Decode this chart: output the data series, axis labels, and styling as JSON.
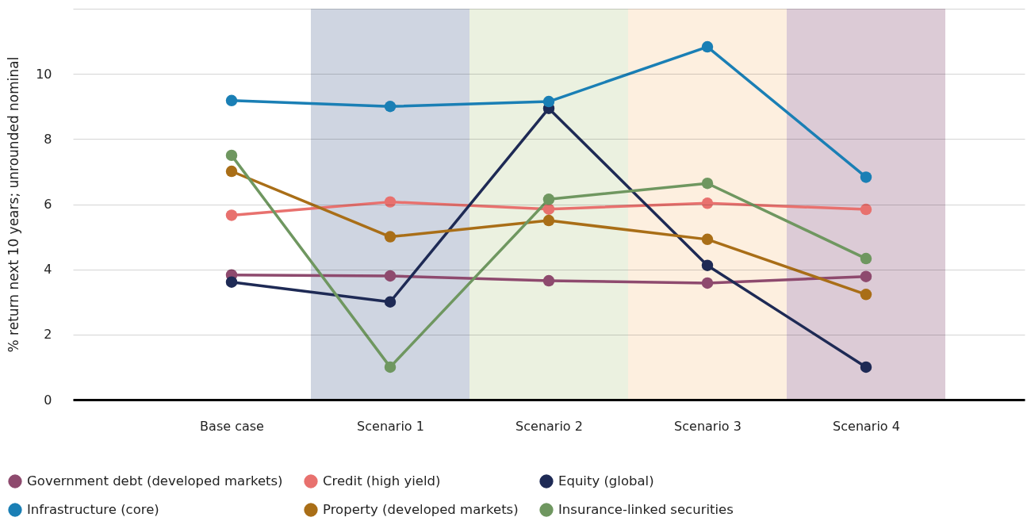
{
  "chart_data": {
    "type": "line",
    "ylabel": "% return next 10 years; unrounded nominal",
    "categories": [
      "Base case",
      "Scenario 1",
      "Scenario 2",
      "Scenario 3",
      "Scenario 4"
    ],
    "series": [
      {
        "name": "Government debt (developed markets)",
        "color": "#8e4a6e",
        "values": [
          3.83,
          3.8,
          3.65,
          3.58,
          3.78
        ]
      },
      {
        "name": "Credit (high yield)",
        "color": "#e8716e",
        "values": [
          5.66,
          6.07,
          5.85,
          6.03,
          5.84
        ]
      },
      {
        "name": "Equity (global)",
        "color": "#1e2a55",
        "values": [
          3.61,
          3.0,
          8.94,
          4.12,
          1.0
        ]
      },
      {
        "name": "Infrastructure (core)",
        "color": "#1a7fb5",
        "values": [
          9.18,
          9.0,
          9.15,
          10.83,
          6.83
        ]
      },
      {
        "name": "Property (developed markets)",
        "color": "#a96e17",
        "values": [
          7.01,
          5.0,
          5.5,
          4.92,
          3.23
        ]
      },
      {
        "name": "Insurance-linked securities",
        "color": "#6f9760",
        "values": [
          7.5,
          1.0,
          6.15,
          6.64,
          4.33
        ]
      }
    ],
    "ylim": [
      0,
      12
    ],
    "yticks": [
      0,
      2,
      4,
      6,
      8,
      10,
      {
        "value": 12,
        "label": null
      }
    ],
    "grid": "y",
    "legend": "bottom",
    "marker": "circle",
    "bands": [
      {
        "axis": "x",
        "from": "Scenario 1",
        "to": "Scenario 1",
        "color": "#cfd5e1"
      },
      {
        "axis": "x",
        "from": "Scenario 2",
        "to": "Scenario 2",
        "color": "#ebf1e0"
      },
      {
        "axis": "x",
        "from": "Scenario 3",
        "to": "Scenario 3",
        "color": "#fdefdf"
      },
      {
        "axis": "x",
        "from": "Scenario 4",
        "to": "Scenario 4",
        "color": "#dccbd6"
      }
    ]
  }
}
